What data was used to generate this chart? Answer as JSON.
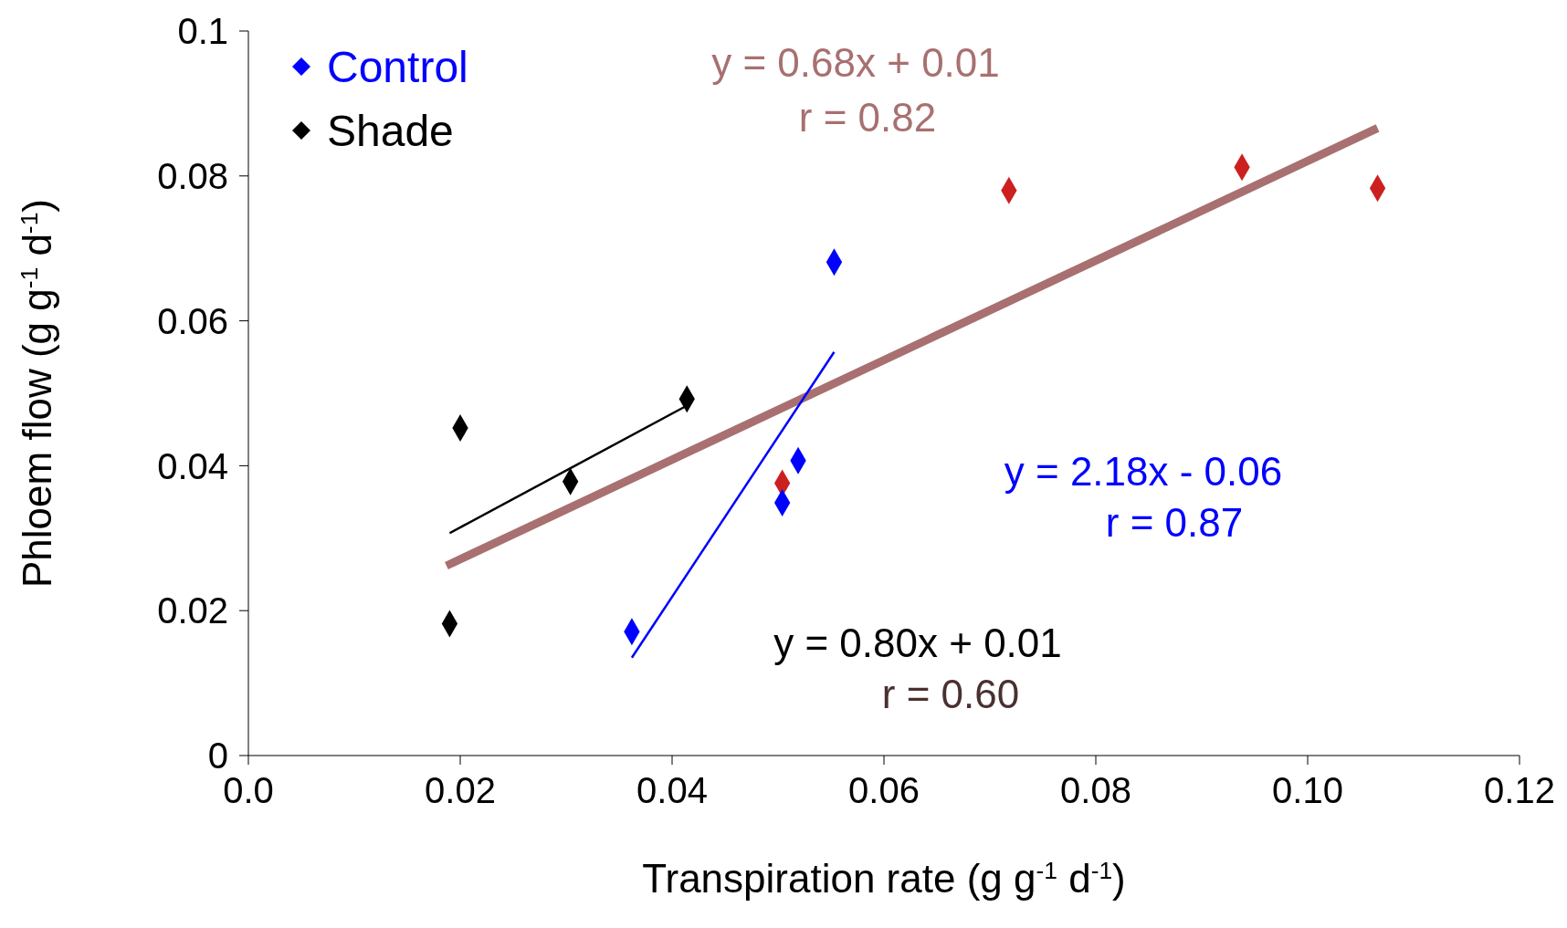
{
  "chart_data": {
    "type": "scatter",
    "xlabel": "Transpiration rate (g g$^{-1}$ d$^{-1}$)",
    "ylabel": "Phloem flow (g g$^{-1}$ d$^{-1}$)",
    "xlim": [
      0,
      0.12
    ],
    "xticks": [
      {
        "value": 0,
        "label": "0.0"
      },
      0.02,
      0.04,
      0.06,
      0.08,
      {
        "value": 0.1,
        "label": "0.10"
      },
      0.12
    ],
    "ylim": [
      0,
      0.1
    ],
    "yticks": [
      0,
      0.02,
      0.04,
      0.06,
      0.08,
      0.1
    ],
    "grid": false,
    "legend": "top left",
    "marker": "diamond",
    "series": [
      {
        "color": "#cc2020",
        "x": [
          0.0504,
          0.0718,
          0.0938,
          0.1066
        ],
        "values": [
          0.0376,
          0.078,
          0.0812,
          0.0783
        ]
      },
      {
        "name": "Control",
        "color": "#0000ff",
        "x": [
          0.0362,
          0.0504,
          0.0519,
          0.0553
        ],
        "values": [
          0.0171,
          0.0349,
          0.0407,
          0.0681
        ]
      },
      {
        "name": "Shade",
        "color": "#000000",
        "x": [
          0.019,
          0.02,
          0.0304,
          0.0414
        ],
        "values": [
          0.0182,
          0.0452,
          0.0378,
          0.0492
        ]
      },
      {
        "type": "line",
        "marker": "none",
        "color": "#a87070",
        "x": [
          0.0187,
          0.1066
        ],
        "values": [
          0.0262,
          0.0866
        ]
      },
      {
        "type": "line",
        "marker": "none",
        "color": "#0000ff",
        "x": [
          0.0362,
          0.0553
        ],
        "values": [
          0.0135,
          0.0557
        ]
      },
      {
        "type": "line",
        "marker": "none",
        "color": "#000000",
        "x": [
          0.019,
          0.0414
        ],
        "values": [
          0.0307,
          0.0483
        ]
      }
    ],
    "annotations": [
      "y = 0.68x + 0.01",
      "r = 0.82",
      "y = 2.18x - 0.06",
      "r = 0.87",
      "y = 0.80x + 0.01",
      "r = 0.60"
    ]
  }
}
